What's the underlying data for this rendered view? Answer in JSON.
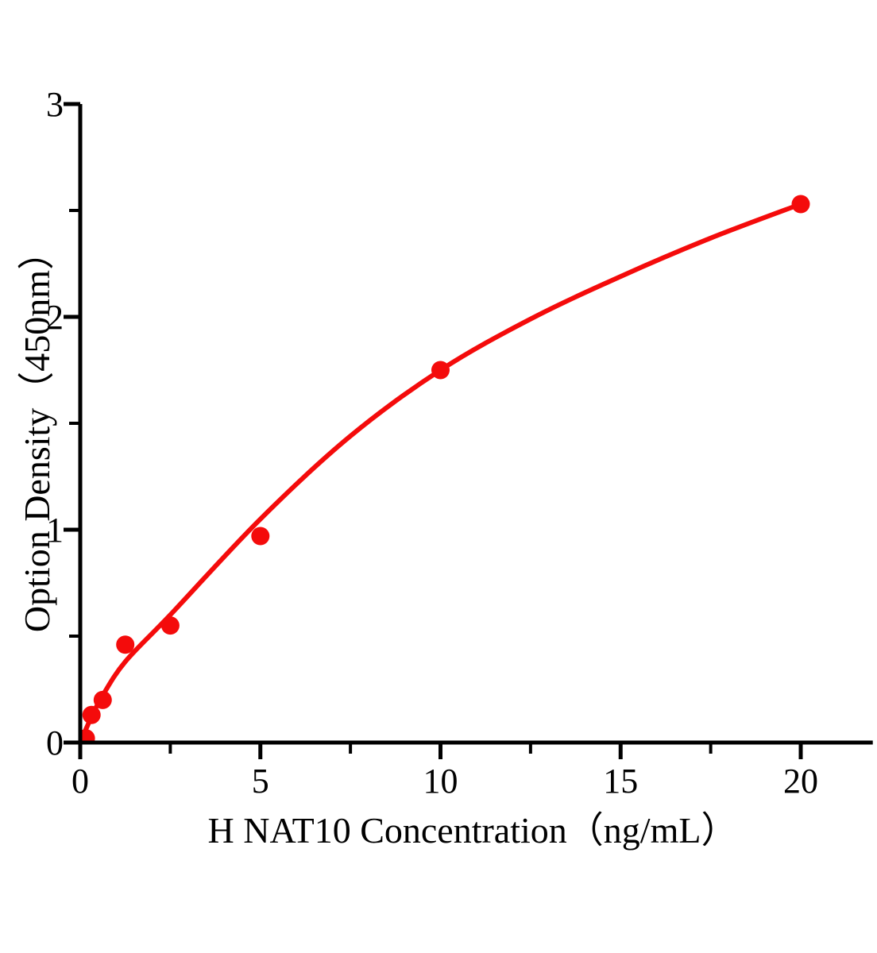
{
  "chart_data": {
    "type": "scatter",
    "title": "",
    "xlabel": "H NAT10 Concentration（ng/mL）",
    "ylabel": "Option Density（450nm）",
    "xlim": [
      0,
      22
    ],
    "ylim": [
      0,
      3
    ],
    "x_major_ticks": [
      0,
      5,
      10,
      15,
      20
    ],
    "x_minor_ticks": [
      2.5,
      7.5,
      12.5,
      17.5
    ],
    "y_major_ticks": [
      0,
      1,
      2,
      3
    ],
    "y_minor_ticks": [
      0.5,
      1.5,
      2.5
    ],
    "grid": false,
    "legend": false,
    "points": [
      {
        "x": 0.156,
        "y": 0.02
      },
      {
        "x": 0.3125,
        "y": 0.13
      },
      {
        "x": 0.625,
        "y": 0.2
      },
      {
        "x": 1.25,
        "y": 0.46
      },
      {
        "x": 2.5,
        "y": 0.55
      },
      {
        "x": 5,
        "y": 0.97
      },
      {
        "x": 10,
        "y": 1.75
      },
      {
        "x": 20,
        "y": 2.53
      }
    ],
    "fit_curve": [
      {
        "x": 0,
        "y": 0
      },
      {
        "x": 0.31,
        "y": 0.12
      },
      {
        "x": 0.62,
        "y": 0.22
      },
      {
        "x": 1.25,
        "y": 0.38
      },
      {
        "x": 2.5,
        "y": 0.6
      },
      {
        "x": 5,
        "y": 1.05
      },
      {
        "x": 7.5,
        "y": 1.44
      },
      {
        "x": 10,
        "y": 1.75
      },
      {
        "x": 12.5,
        "y": 1.99
      },
      {
        "x": 15,
        "y": 2.19
      },
      {
        "x": 17.5,
        "y": 2.37
      },
      {
        "x": 20,
        "y": 2.53
      }
    ],
    "colors": {
      "marker": "#f40b0b",
      "line": "#f40b0b",
      "axis": "#000000",
      "text": "#000000"
    }
  }
}
